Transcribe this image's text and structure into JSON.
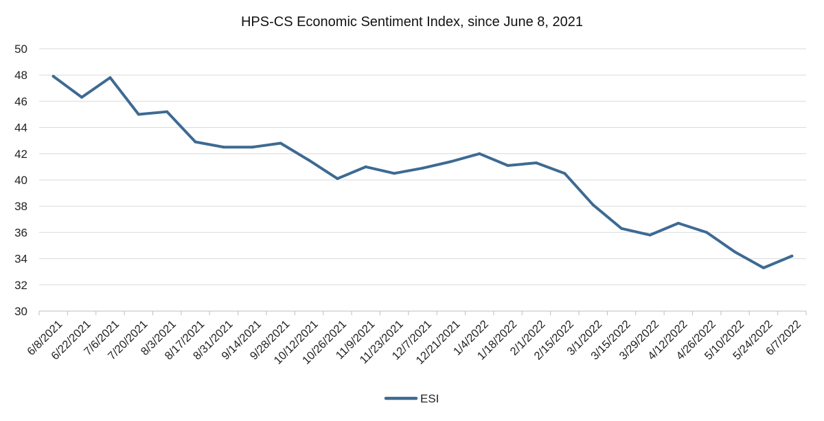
{
  "chart_data": {
    "type": "line",
    "title": "HPS-CS Economic Sentiment Index, since June 8, 2021",
    "xlabel": "",
    "ylabel": "",
    "ylim": [
      30,
      50
    ],
    "yticks": [
      30,
      32,
      34,
      36,
      38,
      40,
      42,
      44,
      46,
      48,
      50
    ],
    "grid": true,
    "legend_position": "bottom",
    "x": [
      "6/8/2021",
      "6/22/2021",
      "7/6/2021",
      "7/20/2021",
      "8/3/2021",
      "8/17/2021",
      "8/31/2021",
      "9/14/2021",
      "9/28/2021",
      "10/12/2021",
      "10/26/2021",
      "11/9/2021",
      "11/23/2021",
      "12/7/2021",
      "12/21/2021",
      "1/4/2022",
      "1/18/2022",
      "2/1/2022",
      "2/15/2022",
      "3/1/2022",
      "3/15/2022",
      "3/29/2022",
      "4/12/2022",
      "4/26/2022",
      "5/10/2022",
      "5/24/2022",
      "6/7/2022"
    ],
    "series": [
      {
        "name": "ESI",
        "color": "#3d6a93",
        "values": [
          47.9,
          46.3,
          47.8,
          45.0,
          45.2,
          42.9,
          42.5,
          42.5,
          42.8,
          41.5,
          40.1,
          41.0,
          40.5,
          40.9,
          41.4,
          42.0,
          41.1,
          41.3,
          40.5,
          38.1,
          36.3,
          35.8,
          36.7,
          36.0,
          34.5,
          33.3,
          34.2
        ]
      }
    ]
  }
}
